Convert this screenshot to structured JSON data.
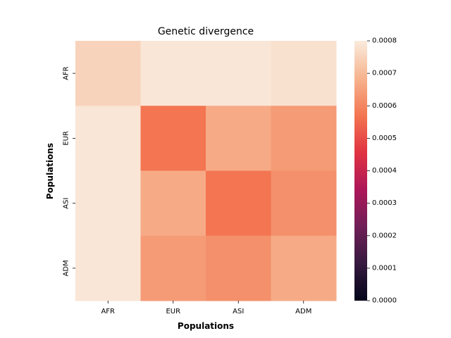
{
  "chart_data": {
    "type": "heatmap",
    "title": "Genetic divergence",
    "xlabel": "Populations",
    "ylabel": "Populations",
    "x_categories": [
      "AFR",
      "EUR",
      "ASI",
      "ADM"
    ],
    "y_categories": [
      "AFR",
      "EUR",
      "ASI",
      "ADM"
    ],
    "values": [
      [
        0.00075,
        0.00079,
        0.00079,
        0.00078
      ],
      [
        0.00079,
        0.00057,
        0.00067,
        0.00064
      ],
      [
        0.00079,
        0.00067,
        0.00057,
        0.00062
      ],
      [
        0.00079,
        0.00064,
        0.00062,
        0.00067
      ]
    ],
    "color_range": [
      0.0,
      0.0008
    ],
    "colorbar_ticks": [
      "0.0000",
      "0.0001",
      "0.0002",
      "0.0003",
      "0.0004",
      "0.0005",
      "0.0006",
      "0.0007",
      "0.0008"
    ],
    "colormap": "rocket",
    "colormap_stops": [
      "#03051a",
      "#36193e",
      "#701f57",
      "#ad1759",
      "#e13342",
      "#f37651",
      "#f6b48f",
      "#faebdd"
    ],
    "axis_color": "#000000",
    "background": "#ffffff"
  }
}
